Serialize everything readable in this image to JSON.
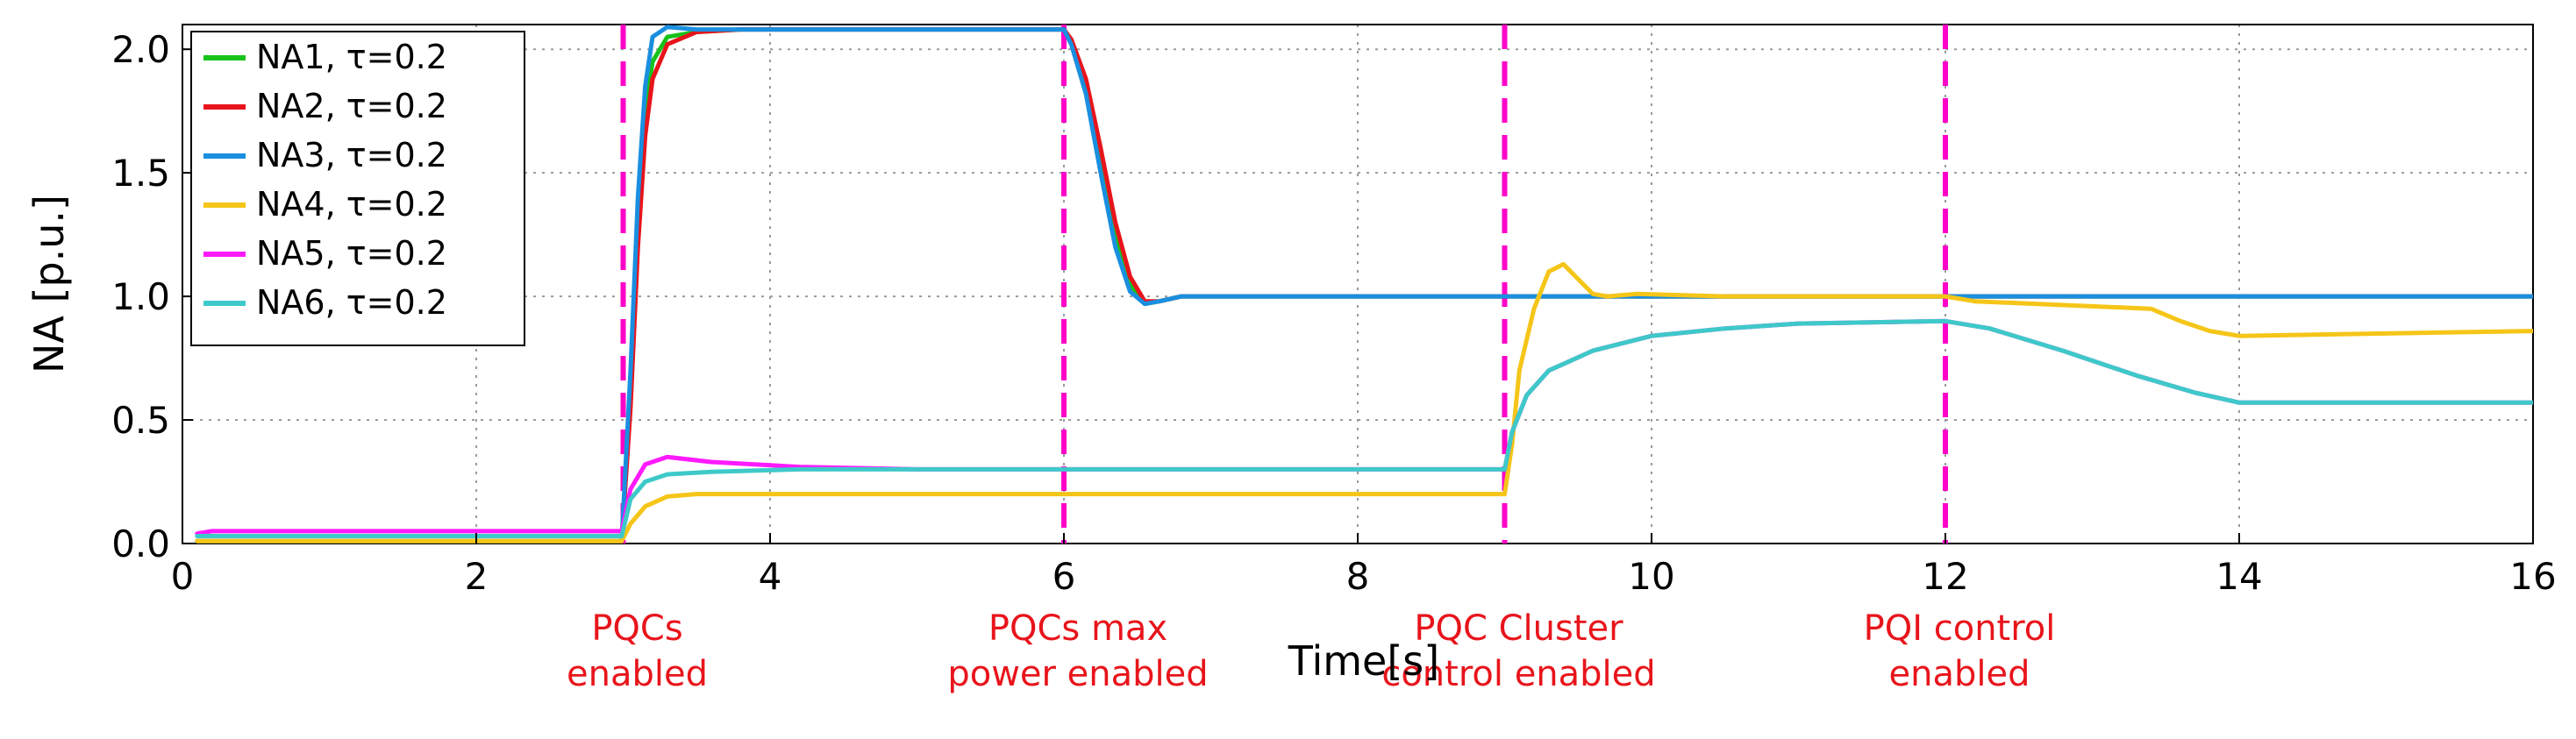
{
  "chart_data": {
    "type": "line",
    "title": "",
    "xlabel": "Time[s]",
    "ylabel": "NA [p.u.]",
    "xlim": [
      0,
      16
    ],
    "ylim": [
      0,
      2.1
    ],
    "xticks": [
      0,
      2,
      4,
      6,
      8,
      10,
      12,
      14,
      16
    ],
    "yticks": [
      0.0,
      0.5,
      1.0,
      1.5,
      2.0
    ],
    "xtick_labels": [
      "0",
      "2",
      "4",
      "6",
      "8",
      "10",
      "12",
      "14",
      "16"
    ],
    "ytick_labels": [
      "0.0",
      "0.5",
      "1.0",
      "1.5",
      "2.0"
    ],
    "grid": true,
    "legend_position": "top-left",
    "events": [
      {
        "x": 3,
        "label_lines": [
          "PQCs",
          "enabled"
        ]
      },
      {
        "x": 6,
        "label_lines": [
          "PQCs max",
          "power enabled"
        ]
      },
      {
        "x": 9,
        "label_lines": [
          "PQC Cluster",
          "control enabled"
        ]
      },
      {
        "x": 12,
        "label_lines": [
          "PQI control",
          "enabled"
        ]
      }
    ],
    "event_color": "#ff00c8",
    "event_label_color": "#e8141b",
    "series": [
      {
        "name": "NA1, τ=0.2",
        "color": "#17c21a",
        "points": [
          [
            0.1,
            0.01
          ],
          [
            2.99,
            0.01
          ],
          [
            3.05,
            0.6
          ],
          [
            3.1,
            1.3
          ],
          [
            3.15,
            1.75
          ],
          [
            3.2,
            1.95
          ],
          [
            3.3,
            2.05
          ],
          [
            3.5,
            2.07
          ],
          [
            3.8,
            2.08
          ],
          [
            6.0,
            2.08
          ],
          [
            6.05,
            2.03
          ],
          [
            6.15,
            1.85
          ],
          [
            6.25,
            1.55
          ],
          [
            6.35,
            1.25
          ],
          [
            6.45,
            1.05
          ],
          [
            6.55,
            0.97
          ],
          [
            6.65,
            0.98
          ],
          [
            6.8,
            1.0
          ],
          [
            9,
            1.0
          ],
          [
            12,
            1.0
          ],
          [
            16,
            1.0
          ]
        ]
      },
      {
        "name": "NA2, τ=0.2",
        "color": "#e8141b",
        "points": [
          [
            0.1,
            0.01
          ],
          [
            2.99,
            0.01
          ],
          [
            3.05,
            0.55
          ],
          [
            3.1,
            1.2
          ],
          [
            3.15,
            1.65
          ],
          [
            3.2,
            1.88
          ],
          [
            3.3,
            2.02
          ],
          [
            3.5,
            2.07
          ],
          [
            3.8,
            2.08
          ],
          [
            6.0,
            2.08
          ],
          [
            6.05,
            2.04
          ],
          [
            6.15,
            1.88
          ],
          [
            6.25,
            1.6
          ],
          [
            6.35,
            1.3
          ],
          [
            6.45,
            1.08
          ],
          [
            6.55,
            0.98
          ],
          [
            6.65,
            0.98
          ],
          [
            6.8,
            1.0
          ],
          [
            9,
            1.0
          ],
          [
            12,
            1.0
          ],
          [
            16,
            1.0
          ]
        ]
      },
      {
        "name": "NA3, τ=0.2",
        "color": "#1a8fe0",
        "points": [
          [
            0.1,
            0.01
          ],
          [
            2.99,
            0.01
          ],
          [
            3.05,
            0.7
          ],
          [
            3.1,
            1.4
          ],
          [
            3.15,
            1.85
          ],
          [
            3.2,
            2.05
          ],
          [
            3.3,
            2.09
          ],
          [
            3.5,
            2.08
          ],
          [
            3.8,
            2.08
          ],
          [
            6.0,
            2.08
          ],
          [
            6.05,
            2.02
          ],
          [
            6.15,
            1.82
          ],
          [
            6.25,
            1.5
          ],
          [
            6.35,
            1.2
          ],
          [
            6.45,
            1.02
          ],
          [
            6.55,
            0.97
          ],
          [
            6.65,
            0.98
          ],
          [
            6.8,
            1.0
          ],
          [
            9,
            1.0
          ],
          [
            12,
            1.0
          ],
          [
            16,
            1.0
          ]
        ]
      },
      {
        "name": "NA4, τ=0.2",
        "color": "#f5c518",
        "points": [
          [
            0.1,
            0.01
          ],
          [
            2.99,
            0.01
          ],
          [
            3.05,
            0.08
          ],
          [
            3.15,
            0.15
          ],
          [
            3.3,
            0.19
          ],
          [
            3.5,
            0.2
          ],
          [
            6,
            0.2
          ],
          [
            9,
            0.2
          ],
          [
            9.05,
            0.4
          ],
          [
            9.1,
            0.7
          ],
          [
            9.2,
            0.95
          ],
          [
            9.3,
            1.1
          ],
          [
            9.4,
            1.13
          ],
          [
            9.5,
            1.07
          ],
          [
            9.6,
            1.01
          ],
          [
            9.7,
            1.0
          ],
          [
            9.9,
            1.01
          ],
          [
            10.5,
            1.0
          ],
          [
            12,
            1.0
          ],
          [
            12.2,
            0.98
          ],
          [
            13.4,
            0.95
          ],
          [
            13.6,
            0.9
          ],
          [
            13.8,
            0.86
          ],
          [
            14,
            0.84
          ],
          [
            15,
            0.85
          ],
          [
            16,
            0.86
          ]
        ]
      },
      {
        "name": "NA5, τ=0.2",
        "color": "#ff1aff",
        "points": [
          [
            0.1,
            0.04
          ],
          [
            0.2,
            0.05
          ],
          [
            2.99,
            0.05
          ],
          [
            3.05,
            0.22
          ],
          [
            3.15,
            0.32
          ],
          [
            3.3,
            0.35
          ],
          [
            3.6,
            0.33
          ],
          [
            4.2,
            0.31
          ],
          [
            5,
            0.3
          ],
          [
            6,
            0.3
          ],
          [
            9,
            0.3
          ],
          [
            9.05,
            0.45
          ],
          [
            9.15,
            0.6
          ],
          [
            9.3,
            0.7
          ],
          [
            9.6,
            0.78
          ],
          [
            10,
            0.84
          ],
          [
            10.5,
            0.87
          ],
          [
            11,
            0.89
          ],
          [
            12,
            0.9
          ],
          [
            12.3,
            0.87
          ],
          [
            12.8,
            0.78
          ],
          [
            13.3,
            0.68
          ],
          [
            13.7,
            0.61
          ],
          [
            14,
            0.57
          ],
          [
            15,
            0.57
          ],
          [
            16,
            0.57
          ]
        ]
      },
      {
        "name": "NA6, τ=0.2",
        "color": "#3ec9c9",
        "points": [
          [
            0.1,
            0.03
          ],
          [
            2.99,
            0.03
          ],
          [
            3.05,
            0.18
          ],
          [
            3.15,
            0.25
          ],
          [
            3.3,
            0.28
          ],
          [
            3.6,
            0.29
          ],
          [
            4.2,
            0.3
          ],
          [
            6,
            0.3
          ],
          [
            9,
            0.3
          ],
          [
            9.05,
            0.45
          ],
          [
            9.15,
            0.6
          ],
          [
            9.3,
            0.7
          ],
          [
            9.6,
            0.78
          ],
          [
            10,
            0.84
          ],
          [
            10.5,
            0.87
          ],
          [
            11,
            0.89
          ],
          [
            12,
            0.9
          ],
          [
            12.3,
            0.87
          ],
          [
            12.8,
            0.78
          ],
          [
            13.3,
            0.68
          ],
          [
            13.7,
            0.61
          ],
          [
            14,
            0.57
          ],
          [
            15,
            0.57
          ],
          [
            16,
            0.57
          ]
        ]
      }
    ]
  }
}
